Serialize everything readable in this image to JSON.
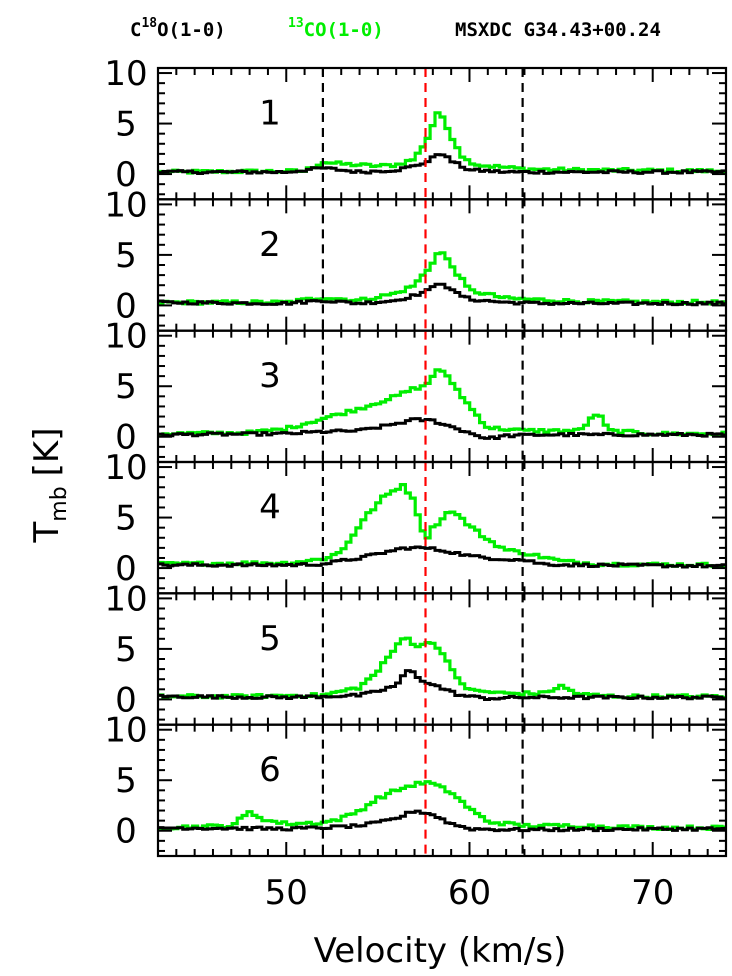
{
  "header": {
    "c18o_prefix": "C",
    "c18o_sup": "18",
    "c18o_suffix": "O(1-0)",
    "co13_sup": "13",
    "co13_suffix": "CO(1-0)",
    "source": "MSXDC G34.43+00.24"
  },
  "colors": {
    "c18o": "#000000",
    "co13": "#00ee00",
    "vline_red": "#ff0000",
    "vline_black": "#000000"
  },
  "axes": {
    "xlabel": "Velocity (km/s)",
    "ylabel_main": "T",
    "ylabel_sub": "mb",
    "ylabel_unit": "[K]",
    "x_ticks": [
      "50",
      "60",
      "70"
    ],
    "y_ticks": [
      "0",
      "5",
      "10"
    ]
  },
  "chart_data": {
    "type": "line",
    "title": "",
    "xlabel": "Velocity (km/s)",
    "ylabel": "Tmb [K]",
    "xlim": [
      43,
      74
    ],
    "ylim": [
      -2.5,
      10.5
    ],
    "x_major_ticks": [
      50,
      60,
      70
    ],
    "x_minor_step": 1,
    "y_major_ticks": [
      0,
      5,
      10
    ],
    "y_minor_step": 1,
    "vertical_lines": [
      {
        "x": 52,
        "color": "#000000",
        "style": "dashed"
      },
      {
        "x": 57.6,
        "color": "#ff0000",
        "style": "dashed"
      },
      {
        "x": 62.9,
        "color": "#000000",
        "style": "dashed"
      }
    ],
    "series_names": [
      "C18O(1-0)",
      "13CO(1-0)"
    ],
    "panels": [
      {
        "label": "1",
        "c18o": [
          [
            43,
            0.2
          ],
          [
            50,
            0.2
          ],
          [
            52,
            0.6
          ],
          [
            54,
            0.2
          ],
          [
            56,
            0.4
          ],
          [
            57,
            0.8
          ],
          [
            57.8,
            1.3
          ],
          [
            58.4,
            2.2
          ],
          [
            59,
            1.3
          ],
          [
            60,
            0.4
          ],
          [
            62,
            0.2
          ],
          [
            64,
            0.2
          ],
          [
            74,
            0.2
          ]
        ],
        "co13": [
          [
            43,
            0.2
          ],
          [
            51,
            0.3
          ],
          [
            52,
            1.2
          ],
          [
            53,
            1.0
          ],
          [
            55,
            0.8
          ],
          [
            56,
            0.9
          ],
          [
            57,
            1.5
          ],
          [
            57.7,
            3.5
          ],
          [
            58.3,
            6.3
          ],
          [
            59,
            3.8
          ],
          [
            59.7,
            1.5
          ],
          [
            60.5,
            0.9
          ],
          [
            63,
            0.5
          ],
          [
            66,
            0.4
          ],
          [
            74,
            0.3
          ]
        ]
      },
      {
        "label": "2",
        "c18o": [
          [
            43,
            0.3
          ],
          [
            50,
            0.2
          ],
          [
            52,
            0.5
          ],
          [
            54,
            0.2
          ],
          [
            56,
            0.5
          ],
          [
            57,
            1.0
          ],
          [
            57.8,
            1.5
          ],
          [
            58.4,
            2.4
          ],
          [
            59,
            1.5
          ],
          [
            60,
            0.6
          ],
          [
            62,
            0.3
          ],
          [
            64,
            0.2
          ],
          [
            74,
            0.2
          ]
        ],
        "co13": [
          [
            43,
            0.3
          ],
          [
            50,
            0.3
          ],
          [
            52,
            0.8
          ],
          [
            54,
            0.5
          ],
          [
            56,
            1.2
          ],
          [
            57,
            2.0
          ],
          [
            57.7,
            3.5
          ],
          [
            58.4,
            5.5
          ],
          [
            59.2,
            3.5
          ],
          [
            60,
            1.5
          ],
          [
            62,
            0.7
          ],
          [
            66,
            0.4
          ],
          [
            74,
            0.3
          ]
        ]
      },
      {
        "label": "3",
        "c18o": [
          [
            43,
            0.2
          ],
          [
            50,
            0.3
          ],
          [
            52,
            0.5
          ],
          [
            54,
            0.6
          ],
          [
            55.5,
            1.1
          ],
          [
            57,
            1.7
          ],
          [
            58,
            1.6
          ],
          [
            59,
            1.0
          ],
          [
            60,
            0.4
          ],
          [
            61,
            -0.2
          ],
          [
            62,
            0.1
          ],
          [
            64,
            0.2
          ],
          [
            74,
            0.2
          ]
        ],
        "co13": [
          [
            43,
            0.3
          ],
          [
            48,
            0.4
          ],
          [
            50,
            0.8
          ],
          [
            52,
            1.8
          ],
          [
            54,
            2.8
          ],
          [
            56,
            4.0
          ],
          [
            57,
            4.8
          ],
          [
            57.6,
            5.0
          ],
          [
            58.3,
            6.8
          ],
          [
            59,
            5.5
          ],
          [
            60,
            3.0
          ],
          [
            61,
            0.9
          ],
          [
            63,
            0.6
          ],
          [
            66,
            0.6
          ],
          [
            67,
            2.4
          ],
          [
            67.6,
            0.6
          ],
          [
            70,
            0.3
          ],
          [
            74,
            0.3
          ]
        ]
      },
      {
        "label": "4",
        "c18o": [
          [
            43,
            0.3
          ],
          [
            50,
            0.3
          ],
          [
            52,
            0.4
          ],
          [
            54,
            1.0
          ],
          [
            55,
            1.4
          ],
          [
            56.5,
            2.0
          ],
          [
            57.6,
            2.0
          ],
          [
            59,
            1.6
          ],
          [
            60,
            1.2
          ],
          [
            61,
            1.0
          ],
          [
            63,
            0.8
          ],
          [
            64,
            0.4
          ],
          [
            66,
            0.3
          ],
          [
            74,
            0.2
          ]
        ],
        "co13": [
          [
            43,
            0.4
          ],
          [
            48,
            0.5
          ],
          [
            50,
            0.5
          ],
          [
            52,
            0.9
          ],
          [
            53,
            1.6
          ],
          [
            54.3,
            5.0
          ],
          [
            55.3,
            7.0
          ],
          [
            56.4,
            8.3
          ],
          [
            57,
            6.5
          ],
          [
            57.6,
            2.8
          ],
          [
            58,
            4.0
          ],
          [
            59,
            5.8
          ],
          [
            60,
            4.2
          ],
          [
            61,
            2.8
          ],
          [
            62,
            1.8
          ],
          [
            63,
            1.5
          ],
          [
            65,
            0.7
          ],
          [
            67,
            0.4
          ],
          [
            74,
            0.3
          ]
        ]
      },
      {
        "label": "5",
        "c18o": [
          [
            43,
            0.3
          ],
          [
            50,
            0.2
          ],
          [
            52,
            0.3
          ],
          [
            54,
            0.4
          ],
          [
            55,
            0.8
          ],
          [
            56,
            1.4
          ],
          [
            56.7,
            3.0
          ],
          [
            57.3,
            2.0
          ],
          [
            58.5,
            1.1
          ],
          [
            59.5,
            0.4
          ],
          [
            61,
            0.1
          ],
          [
            63,
            0.2
          ],
          [
            74,
            0.2
          ]
        ],
        "co13": [
          [
            43,
            0.3
          ],
          [
            48,
            0.3
          ],
          [
            50,
            0.4
          ],
          [
            52,
            0.4
          ],
          [
            53,
            0.8
          ],
          [
            54,
            1.2
          ],
          [
            55,
            2.8
          ],
          [
            56,
            5.2
          ],
          [
            56.5,
            6.5
          ],
          [
            57.1,
            5.0
          ],
          [
            57.7,
            5.8
          ],
          [
            58.3,
            5.2
          ],
          [
            59.2,
            2.4
          ],
          [
            60,
            0.9
          ],
          [
            62,
            0.6
          ],
          [
            64,
            0.6
          ],
          [
            65,
            1.3
          ],
          [
            66,
            0.5
          ],
          [
            68,
            0.3
          ],
          [
            74,
            0.3
          ]
        ]
      },
      {
        "label": "6",
        "c18o": [
          [
            43,
            0.3
          ],
          [
            50,
            0.2
          ],
          [
            52,
            0.3
          ],
          [
            54,
            0.5
          ],
          [
            55,
            0.8
          ],
          [
            56,
            1.2
          ],
          [
            57,
            2.0
          ],
          [
            58,
            1.6
          ],
          [
            59,
            0.7
          ],
          [
            60,
            0.2
          ],
          [
            62,
            0.1
          ],
          [
            74,
            0.2
          ]
        ],
        "co13": [
          [
            43,
            0.3
          ],
          [
            47,
            0.5
          ],
          [
            48,
            1.8
          ],
          [
            49,
            1.0
          ],
          [
            50,
            0.7
          ],
          [
            52,
            0.8
          ],
          [
            53,
            1.2
          ],
          [
            54,
            2.0
          ],
          [
            55,
            3.2
          ],
          [
            56,
            4.0
          ],
          [
            57,
            4.6
          ],
          [
            57.8,
            4.8
          ],
          [
            59,
            3.8
          ],
          [
            60,
            2.2
          ],
          [
            61,
            0.9
          ],
          [
            63,
            0.5
          ],
          [
            66,
            0.5
          ],
          [
            70,
            0.3
          ],
          [
            74,
            0.3
          ]
        ]
      }
    ]
  }
}
